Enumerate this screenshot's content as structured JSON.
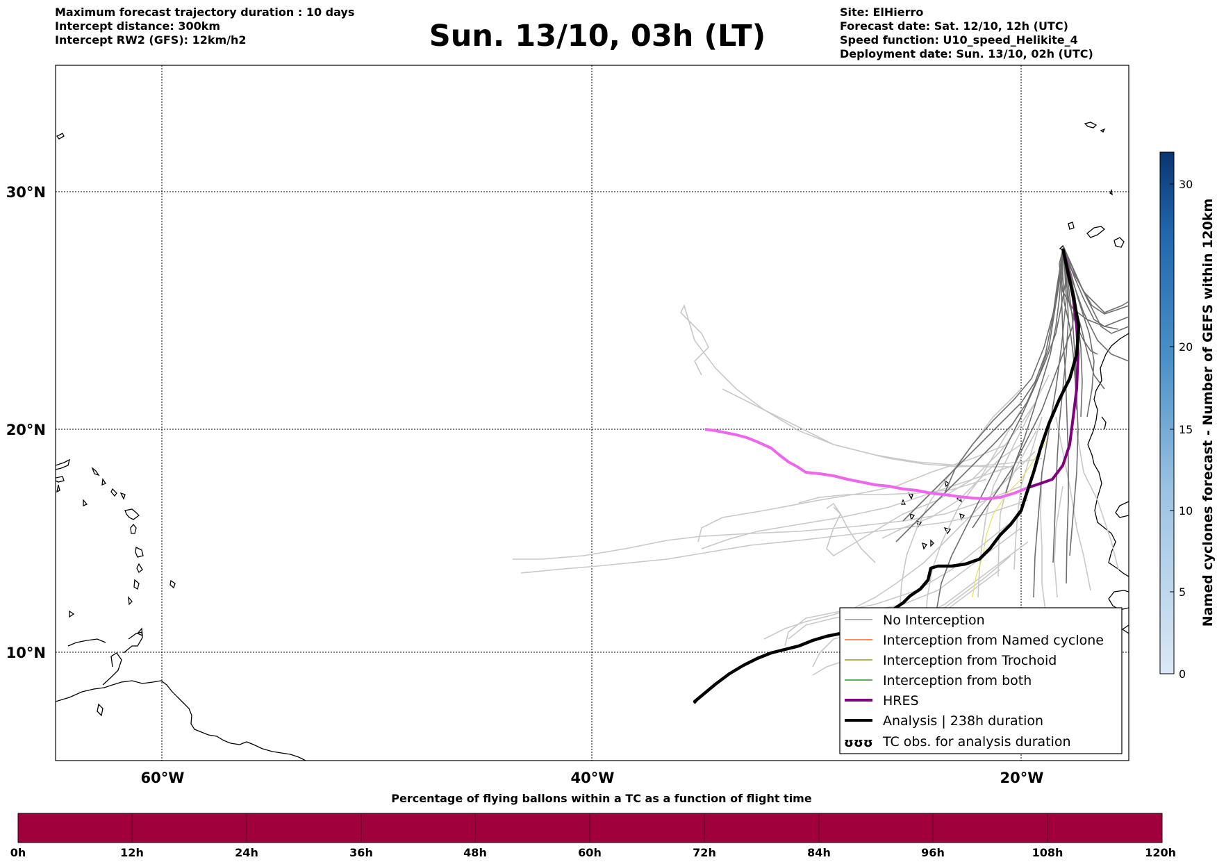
{
  "header": {
    "left": [
      "Maximum forecast trajectory duration : 10 days",
      "Intercept distance: 300km",
      "Intercept RW2 (GFS):  12km/h2"
    ],
    "title": "Sun. 13/10, 03h (LT)",
    "right": [
      "Site: ElHierro",
      "Forecast date: Sat. 12/10, 12h (UTC)",
      "Speed function: U10_speed_Helikite_4",
      "Deployment date: Sun. 13/10, 02h (UTC)"
    ]
  },
  "map": {
    "lat_labels": [
      "30°N",
      "20°N",
      "10°N"
    ],
    "lon_labels": [
      "60°W",
      "40°W",
      "20°W"
    ]
  },
  "legend": {
    "items": [
      "No Interception",
      "Interception from Named cyclone",
      "Interception from Trochoid",
      "Interception from both",
      "HRES",
      "Analysis | 238h duration",
      "TC obs. for analysis duration"
    ],
    "tc_symbol": "ʊʊʊ",
    "colors": [
      "#808080",
      "#ff4500",
      "#808000",
      "#008000",
      "#800080",
      "#000000",
      "#000000"
    ]
  },
  "colorbar_right": {
    "label": "Named cyclones forecast - Number of GEFS within 120km",
    "ticks": [
      "0",
      "5",
      "10",
      "15",
      "20",
      "30"
    ]
  },
  "colorbar_bottom": {
    "title": "Percentage of flying ballons within a TC as a function of flight time",
    "ticks": [
      "0h",
      "12h",
      "24h",
      "36h",
      "48h",
      "60h",
      "72h",
      "84h",
      "96h",
      "108h",
      "120h"
    ],
    "color": "#a0003c"
  }
}
